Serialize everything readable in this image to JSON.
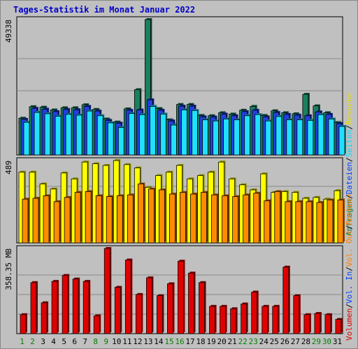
{
  "title": "Tages-Statistik im Monat Januar 2022",
  "chart_data": [
    {
      "type": "bar",
      "panel": "top",
      "ymax_label": "49338",
      "ylim": [
        0,
        49338
      ],
      "categories": [
        "1",
        "2",
        "3",
        "4",
        "5",
        "6",
        "7",
        "8",
        "9",
        "10",
        "11",
        "12",
        "13",
        "14",
        "15",
        "16",
        "17",
        "18",
        "19",
        "20",
        "21",
        "22",
        "23",
        "24",
        "25",
        "26",
        "27",
        "28",
        "29",
        "30",
        "31"
      ],
      "weekend_days": [
        "1",
        "2",
        "8",
        "9",
        "15",
        "16",
        "22",
        "23",
        "29",
        "30"
      ],
      "legend": [
        {
          "label": "Anfragen",
          "color": "#008040"
        },
        {
          "label": "/",
          "color": "#000000"
        },
        {
          "label": "Dateien",
          "color": "#0040ff"
        },
        {
          "label": "/",
          "color": "#000000"
        },
        {
          "label": "Seiten",
          "color": "#00e0ff"
        },
        {
          "label": "/",
          "color": "#000000"
        },
        {
          "label": "Besuche",
          "color": "#e0e000"
        }
      ],
      "series": [
        {
          "name": "Anfragen",
          "color": "#1a8060",
          "values": [
            13400,
            17600,
            17400,
            16400,
            17200,
            17200,
            18300,
            16600,
            13100,
            12000,
            16800,
            23800,
            49338,
            16900,
            12800,
            18400,
            18400,
            14400,
            14300,
            15400,
            14900,
            16300,
            17700,
            14400,
            16100,
            15400,
            15000,
            22100,
            17900,
            15400,
            11800
          ]
        },
        {
          "name": "Dateien",
          "color": "#2040e0",
          "values": [
            13000,
            17000,
            16700,
            15800,
            16600,
            16500,
            17700,
            16000,
            12600,
            11600,
            16300,
            16400,
            20100,
            16300,
            12400,
            17800,
            17800,
            13900,
            13800,
            14900,
            14300,
            15800,
            16300,
            13900,
            15500,
            14800,
            14500,
            14300,
            15700,
            14800,
            11400
          ]
        },
        {
          "name": "Seiten",
          "color": "#20e0ff",
          "values": [
            11900,
            15500,
            15000,
            14100,
            14800,
            14500,
            16000,
            14300,
            11700,
            10000,
            15100,
            14700,
            17700,
            14900,
            10900,
            16400,
            16200,
            12800,
            12400,
            13100,
            12800,
            14300,
            14700,
            12400,
            14000,
            12800,
            12800,
            12600,
            14700,
            13100,
            10400
          ]
        }
      ]
    },
    {
      "type": "bar",
      "panel": "middle",
      "ymax_label": "489",
      "ylim": [
        0,
        489
      ],
      "series": [
        {
          "name": "Besuche",
          "color": "#ffff00",
          "values": [
            420,
            420,
            350,
            320,
            415,
            380,
            480,
            470,
            460,
            489,
            465,
            445,
            330,
            400,
            420,
            460,
            380,
            400,
            420,
            480,
            380,
            345,
            315,
            410,
            300,
            305,
            300,
            265,
            270,
            260,
            310
          ]
        },
        {
          "name": "Rechner",
          "color": "#ff8c00",
          "values": [
            260,
            265,
            280,
            245,
            270,
            300,
            305,
            280,
            275,
            280,
            285,
            350,
            320,
            315,
            290,
            300,
            290,
            300,
            285,
            280,
            275,
            285,
            295,
            250,
            305,
            245,
            245,
            245,
            240,
            255,
            255
          ]
        }
      ]
    },
    {
      "type": "bar",
      "panel": "bottom",
      "ymax_label": "358.35 MB",
      "ylim": [
        0,
        358.35
      ],
      "legend": [
        {
          "label": "Volumen",
          "color": "#e00000"
        },
        {
          "label": "/",
          "color": "#000000"
        },
        {
          "label": "Vol. In",
          "color": "#0040ff"
        },
        {
          "label": "/",
          "color": "#000000"
        },
        {
          "label": "Vol. Out",
          "color": "#ff8000"
        },
        {
          "label": "/",
          "color": "#000000"
        },
        {
          "label": "Rechner",
          "color": "#ff8000"
        }
      ],
      "series": [
        {
          "name": "Volumen",
          "color": "#e00000",
          "values": [
            80,
            215,
            130,
            220,
            245,
            230,
            220,
            75,
            358.35,
            195,
            310,
            165,
            235,
            160,
            210,
            305,
            255,
            215,
            115,
            115,
            105,
            125,
            175,
            115,
            115,
            280,
            160,
            80,
            85,
            80,
            60
          ]
        }
      ]
    }
  ]
}
